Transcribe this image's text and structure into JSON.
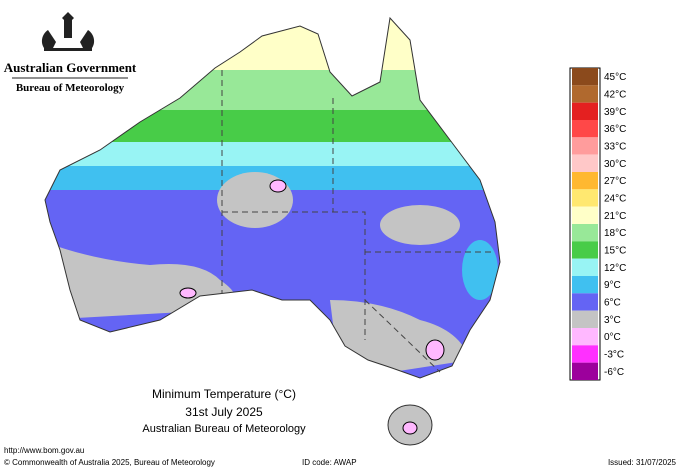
{
  "header": {
    "government": "Australian Government",
    "bureau": "Bureau of Meteorology"
  },
  "legend": {
    "items": [
      {
        "label": "45°C",
        "color": "#8b4a1c"
      },
      {
        "label": "42°C",
        "color": "#b0692e"
      },
      {
        "label": "39°C",
        "color": "#e42020"
      },
      {
        "label": "36°C",
        "color": "#ff4848"
      },
      {
        "label": "33°C",
        "color": "#ff9c9c"
      },
      {
        "label": "30°C",
        "color": "#ffc8c8"
      },
      {
        "label": "27°C",
        "color": "#ffb830"
      },
      {
        "label": "24°C",
        "color": "#ffe870"
      },
      {
        "label": "21°C",
        "color": "#ffffc8"
      },
      {
        "label": "18°C",
        "color": "#98e898"
      },
      {
        "label": "15°C",
        "color": "#48cc48"
      },
      {
        "label": "12°C",
        "color": "#98f4f4"
      },
      {
        "label": "9°C",
        "color": "#40c0f0"
      },
      {
        "label": "6°C",
        "color": "#6464f4"
      },
      {
        "label": "3°C",
        "color": "#c4c4c4"
      },
      {
        "label": "0°C",
        "color": "#ffb8ff"
      },
      {
        "label": "-3°C",
        "color": "#ff30ff"
      },
      {
        "label": "-6°C",
        "color": "#9c009c"
      }
    ]
  },
  "caption": {
    "title": "Minimum Temperature (°C)",
    "date": "31st July 2025",
    "source": "Australian Bureau of Meteorology"
  },
  "footer": {
    "url": "http://www.bom.gov.au",
    "copyright": "© Commonwealth of Australia 2025, Bureau of Meteorology",
    "id_code": "ID code: AWAP",
    "issued": "Issued: 31/07/2025"
  }
}
